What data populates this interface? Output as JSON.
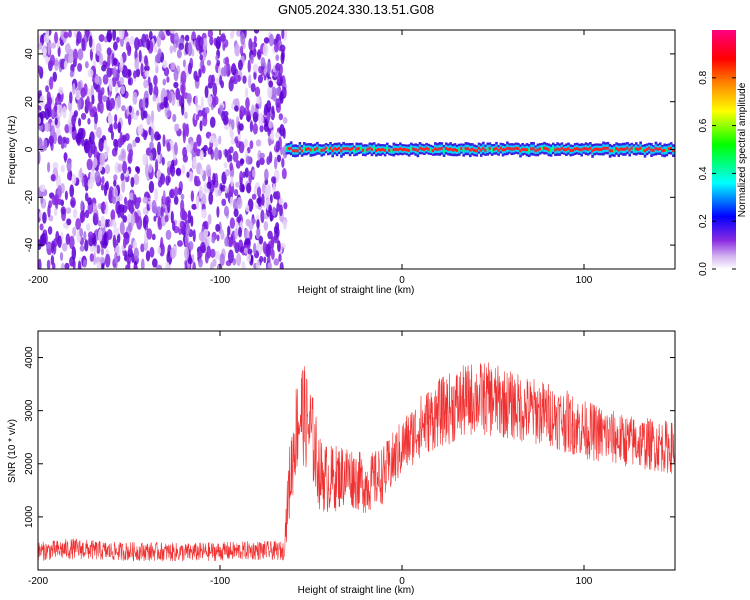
{
  "title": "GN05.2024.330.13.51.G08",
  "chart_data": [
    {
      "type": "heatmap",
      "xlabel": "Height of straight line (km)",
      "ylabel": "Frequency (Hz)",
      "xlim": [
        -200,
        150
      ],
      "ylim": [
        -50,
        50
      ],
      "x_ticks": [
        -200,
        -100,
        0,
        100
      ],
      "y_ticks": [
        -40,
        -20,
        0,
        20,
        40
      ],
      "colorbar": {
        "label": "Normalized spectral amplitude",
        "range": [
          0.0,
          1.0
        ],
        "ticks": [
          0.0,
          0.2,
          0.4,
          0.6,
          0.8
        ],
        "colormap": [
          "#ffffff",
          "#8a2be2",
          "#0000ff",
          "#00ffff",
          "#00ff00",
          "#ffff00",
          "#ff8000",
          "#ff0000",
          "#ff0080"
        ]
      },
      "regions": [
        {
          "name": "scattered noise",
          "x_range": [
            -200,
            -64
          ],
          "y_range": [
            -50,
            50
          ],
          "amplitude": 0.1
        },
        {
          "name": "tone band",
          "x_range": [
            -64,
            150
          ],
          "y_range": [
            -3,
            3
          ],
          "amplitude_band": 0.3,
          "amplitude_center": 0.9,
          "center_frequency": 0
        }
      ]
    },
    {
      "type": "line",
      "xlabel": "Height of straight line (km)",
      "ylabel": "SNR (10 * v/v)",
      "xlim": [
        -200,
        150
      ],
      "ylim": [
        0,
        4500
      ],
      "x_ticks": [
        -200,
        -100,
        0,
        100
      ],
      "y_ticks": [
        1000,
        2000,
        3000,
        4000
      ],
      "color": "#f03030",
      "series": [
        {
          "x": [
            -200,
            -180,
            -160,
            -140,
            -120,
            -100,
            -80,
            -65,
            -62,
            -58,
            -55,
            -50,
            -45,
            -40,
            -30,
            -20,
            -10,
            0,
            10,
            20,
            30,
            40,
            50,
            60,
            70,
            80,
            90,
            100,
            110,
            120,
            130,
            140,
            150
          ],
          "y": [
            350,
            400,
            350,
            350,
            330,
            350,
            370,
            360,
            1600,
            2700,
            3000,
            2600,
            1800,
            1700,
            1800,
            1600,
            1800,
            2300,
            2700,
            2950,
            3100,
            3250,
            3200,
            3100,
            3000,
            2950,
            2800,
            2650,
            2550,
            2450,
            2400,
            2350,
            2300
          ],
          "noise": [
            180,
            200,
            180,
            180,
            180,
            180,
            180,
            180,
            700,
            900,
            1000,
            900,
            700,
            650,
            600,
            550,
            550,
            550,
            600,
            650,
            700,
            700,
            700,
            650,
            650,
            600,
            600,
            550,
            550,
            500,
            500,
            500,
            500
          ]
        }
      ]
    }
  ]
}
